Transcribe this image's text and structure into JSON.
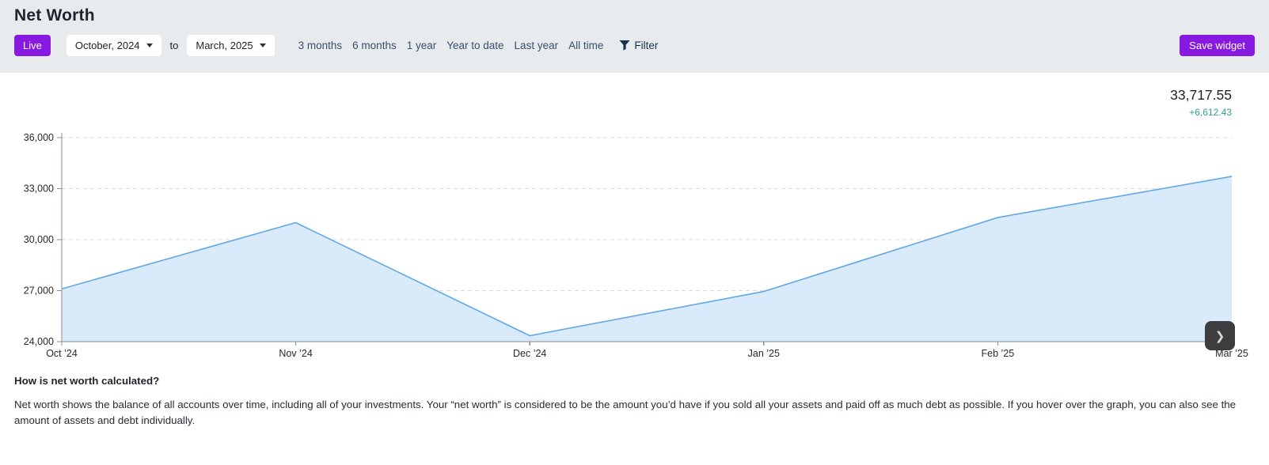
{
  "page": {
    "title": "Net Worth"
  },
  "toolbar": {
    "live_label": "Live",
    "from_month": "October, 2024",
    "to_separator": "to",
    "to_month": "March, 2025",
    "ranges": [
      "3 months",
      "6 months",
      "1 year",
      "Year to date",
      "Last year",
      "All time"
    ],
    "filter_label": "Filter",
    "save_label": "Save widget"
  },
  "summary": {
    "net_worth": "33,717.55",
    "change": "+6,612.43"
  },
  "chart_data": {
    "type": "area",
    "title": "Net Worth",
    "x": [
      "Oct ’24",
      "Nov ’24",
      "Dec ’24",
      "Jan ’25",
      "Feb ’25",
      "Mar ’25"
    ],
    "series": [
      {
        "name": "Net worth",
        "values": [
          27105.12,
          31000,
          24350,
          26950,
          31300,
          33717.55
        ]
      }
    ],
    "xlabel": "",
    "ylabel": "",
    "ylim": [
      24000,
      36000
    ],
    "yticks": [
      24000,
      27000,
      30000,
      33000,
      36000
    ],
    "ytick_labels": [
      "24,000",
      "27,000",
      "30,000",
      "33,000",
      "36,000"
    ],
    "grid": "dashed-horizontal",
    "legend": "none",
    "line_color": "#62a8e5",
    "fill_color": "#d9eafb",
    "grid_color": "#d8dbdf",
    "axis_color": "#878d95",
    "tick_label_color": "#24282d"
  },
  "chart_nav": {
    "next_icon": "❯"
  },
  "explainer": {
    "heading": "How is net worth calculated?",
    "body": "Net worth shows the balance of all accounts over time, including all of your investments. Your “net worth” is considered to be the amount you’d have if you sold all your assets and paid off as much debt as possible. If you hover over the graph, you can also see the amount of assets and debt individually."
  },
  "colors": {
    "accent_purple": "#8719e0",
    "positive_teal": "#2f9e8f",
    "line_blue": "#62a8e5",
    "area_fill": "#d9eafb",
    "band_gray": "#e8ebee"
  }
}
